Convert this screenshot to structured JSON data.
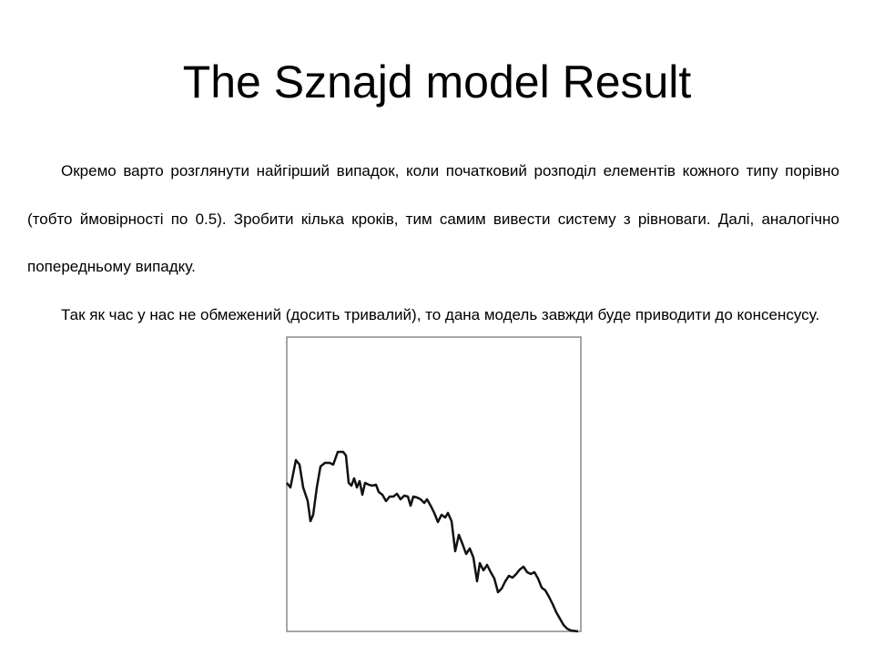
{
  "title": "The Sznajd model Result",
  "paragraphs": [
    "Окремо варто розглянути найгірший випадок, коли початковий розподіл елементів кожного типу порівно (тобто ймовірності по 0.5). Зробити кілька кроків, тим самим вивести систему з рівноваги. Далі, аналогічно попередньому випадку.",
    "Так як час у нас не обмежений (досить тривалий), то дана модель завжди буде приводити до консенсусу."
  ],
  "chart_data": {
    "type": "line",
    "color": "#111111",
    "xlim": [
      0,
      323
    ],
    "ylim": [
      0,
      323
    ],
    "x": [
      0,
      4,
      10,
      14,
      18,
      23,
      26,
      29,
      33,
      37,
      42,
      47,
      51,
      56,
      62,
      65,
      68,
      71,
      74,
      77,
      80,
      83,
      86,
      90,
      94,
      98,
      101,
      105,
      109,
      113,
      117,
      121,
      125,
      129,
      133,
      136,
      139,
      143,
      147,
      151,
      154,
      158,
      162,
      166,
      170,
      174,
      177,
      181,
      185,
      189,
      193,
      197,
      201,
      205,
      209,
      212,
      216,
      220,
      224,
      228,
      232,
      236,
      240,
      244,
      248,
      252,
      256,
      260,
      264,
      268,
      272,
      276,
      280,
      284,
      288,
      292,
      296,
      300,
      304,
      308,
      312,
      320
    ],
    "values": [
      163,
      158,
      188,
      183,
      158,
      143,
      121,
      128,
      158,
      181,
      185,
      185,
      183,
      197,
      197,
      193,
      163,
      160,
      168,
      158,
      165,
      150,
      163,
      161,
      160,
      161,
      153,
      150,
      143,
      148,
      148,
      151,
      145,
      149,
      148,
      138,
      148,
      147,
      145,
      141,
      145,
      138,
      130,
      120,
      128,
      125,
      130,
      121,
      88,
      106,
      96,
      85,
      91,
      81,
      55,
      75,
      67,
      73,
      65,
      58,
      43,
      47,
      55,
      61,
      59,
      63,
      68,
      71,
      65,
      63,
      65,
      58,
      48,
      45,
      38,
      30,
      21,
      14,
      7,
      3,
      1,
      0
    ]
  }
}
